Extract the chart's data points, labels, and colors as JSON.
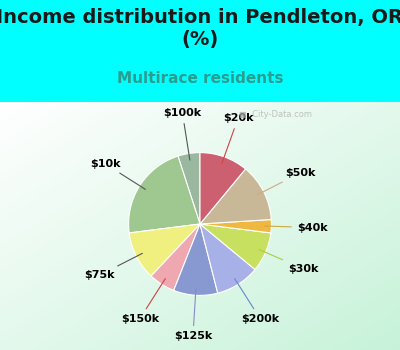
{
  "title": "Income distribution in Pendleton, OR\n(%)",
  "subtitle": "Multirace residents",
  "bg_color": "#00ffff",
  "labels": [
    "$100k",
    "$10k",
    "$75k",
    "$150k",
    "$125k",
    "$200k",
    "$30k",
    "$40k",
    "$50k",
    "$20k"
  ],
  "sizes": [
    5,
    22,
    11,
    6,
    10,
    10,
    9,
    3,
    13,
    11
  ],
  "colors": [
    "#9ab8a0",
    "#9ec890",
    "#f0f080",
    "#f0a8b0",
    "#8898d0",
    "#a8b0e8",
    "#c8e060",
    "#f0b840",
    "#c8b898",
    "#cc6070"
  ],
  "startangle": 90,
  "label_fs": 8,
  "title_fs": 14,
  "sub_fs": 11,
  "sub_color": "#2a9d8f",
  "title_color": "#1a1a1a",
  "watermark": "■  City-Data.com"
}
